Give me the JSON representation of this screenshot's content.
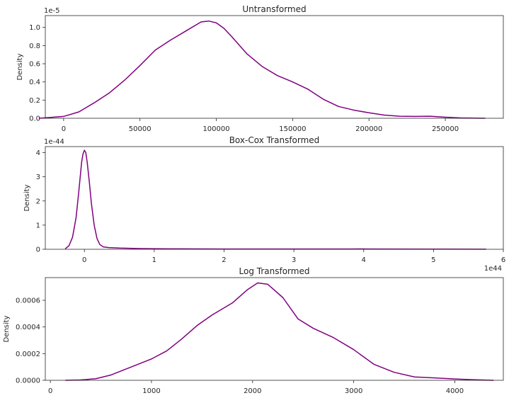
{
  "figure": {
    "line_color": "#800080",
    "background": "#ffffff",
    "axis_color": "#262626"
  },
  "chart_data": [
    {
      "type": "line",
      "title": "Untransformed",
      "ylabel": "Density",
      "xlabel": "",
      "y_offset_text": "1e-5",
      "x_offset_text": "",
      "xlim": [
        -12000,
        288000
      ],
      "ylim": [
        0,
        1.13
      ],
      "xticks": [
        0,
        50000,
        100000,
        150000,
        200000,
        250000
      ],
      "xtick_labels": [
        "0",
        "50000",
        "100000",
        "150000",
        "200000",
        "250000"
      ],
      "yticks": [
        0,
        0.2,
        0.4,
        0.6,
        0.8,
        1.0
      ],
      "ytick_labels": [
        "0.0",
        "0.2",
        "0.4",
        "0.6",
        "0.8",
        "1.0"
      ],
      "grid": false,
      "series": [
        {
          "x": [
            -16000,
            0,
            10000,
            20000,
            30000,
            40000,
            50000,
            60000,
            70000,
            80000,
            90000,
            95000,
            100000,
            105000,
            110000,
            120000,
            130000,
            140000,
            150000,
            160000,
            170000,
            180000,
            190000,
            200000,
            210000,
            220000,
            230000,
            240000,
            250000,
            260000,
            276000
          ],
          "y": [
            0,
            0.02,
            0.07,
            0.17,
            0.28,
            0.42,
            0.58,
            0.75,
            0.86,
            0.96,
            1.06,
            1.07,
            1.05,
            0.99,
            0.9,
            0.71,
            0.57,
            0.47,
            0.4,
            0.32,
            0.21,
            0.13,
            0.09,
            0.06,
            0.035,
            0.022,
            0.02,
            0.022,
            0.012,
            0.004,
            0
          ]
        }
      ]
    },
    {
      "type": "line",
      "title": "Box-Cox Transformed",
      "ylabel": "Density",
      "xlabel": "",
      "y_offset_text": "1e-44",
      "x_offset_text": "1e44",
      "xlim": [
        -0.56,
        6.0
      ],
      "ylim": [
        0,
        4.25
      ],
      "xticks": [
        0,
        1,
        2,
        3,
        4,
        5,
        6
      ],
      "xtick_labels": [
        "0",
        "1",
        "2",
        "3",
        "4",
        "5",
        "6"
      ],
      "yticks": [
        0,
        1,
        2,
        3,
        4
      ],
      "ytick_labels": [
        "0",
        "1",
        "2",
        "3",
        "4"
      ],
      "grid": false,
      "series": [
        {
          "x": [
            -0.27,
            -0.22,
            -0.17,
            -0.12,
            -0.08,
            -0.04,
            -0.02,
            0,
            0.02,
            0.04,
            0.07,
            0.1,
            0.14,
            0.18,
            0.22,
            0.27,
            0.35,
            0.5,
            0.8,
            1.2,
            2.0,
            3.0,
            3.8,
            3.95,
            4.1,
            5.0,
            5.75
          ],
          "y": [
            0.03,
            0.15,
            0.5,
            1.3,
            2.4,
            3.6,
            3.95,
            4.1,
            4.0,
            3.6,
            2.8,
            1.9,
            1.0,
            0.45,
            0.2,
            0.1,
            0.07,
            0.05,
            0.03,
            0.02,
            0.012,
            0.01,
            0.01,
            0.015,
            0.01,
            0.008,
            0.005
          ]
        }
      ]
    },
    {
      "type": "line",
      "title": "Log Transformed",
      "ylabel": "Density",
      "xlabel": "",
      "y_offset_text": "",
      "x_offset_text": "",
      "xlim": [
        -50,
        4480
      ],
      "ylim": [
        0,
        0.00077
      ],
      "xticks": [
        0,
        1000,
        2000,
        3000,
        4000
      ],
      "xtick_labels": [
        "0",
        "1000",
        "2000",
        "3000",
        "4000"
      ],
      "yticks": [
        0,
        0.0002,
        0.0004,
        0.0006
      ],
      "ytick_labels": [
        "0.0000",
        "0.0002",
        "0.0004",
        "0.0006"
      ],
      "grid": false,
      "series": [
        {
          "x": [
            150,
            300,
            450,
            600,
            800,
            1000,
            1150,
            1300,
            1450,
            1600,
            1800,
            1950,
            2050,
            2150,
            2300,
            2450,
            2600,
            2800,
            3000,
            3200,
            3400,
            3600,
            3800,
            4000,
            4200,
            4380
          ],
          "y": [
            0,
            3e-06,
            1.2e-05,
            4e-05,
            0.0001,
            0.00016,
            0.00022,
            0.00031,
            0.00041,
            0.00049,
            0.00058,
            0.00068,
            0.00073,
            0.00072,
            0.00062,
            0.00046,
            0.00039,
            0.00032,
            0.00023,
            0.00012,
            6e-05,
            2.5e-05,
            1.8e-05,
            1e-05,
            4e-06,
            0
          ]
        }
      ]
    }
  ]
}
